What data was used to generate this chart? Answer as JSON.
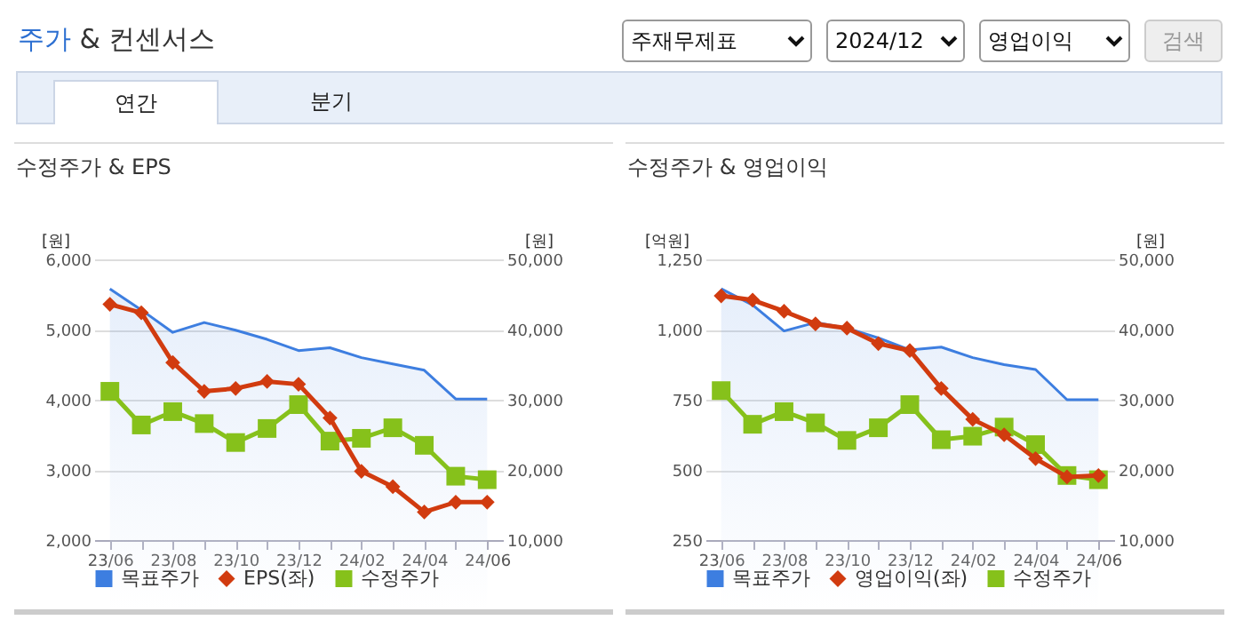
{
  "chart_data": [
    {
      "type": "other",
      "title": "주가 & 컨센서스",
      "annotations": [
        "주재무제표",
        "2024/12",
        "영업이익",
        "검색",
        "연간",
        "분기"
      ]
    },
    {
      "type": "line",
      "title": "수정주가 & EPS",
      "ylabel": "[원]",
      "y2label": "[원]",
      "categories": [
        "23/06",
        null,
        "23/08",
        null,
        "23/10",
        null,
        "23/12",
        null,
        "24/02",
        null,
        "24/04",
        null,
        "24/06"
      ],
      "series": [
        {
          "name": "목표주가",
          "type": "area",
          "axis": "y2",
          "color": "#3d7ee0",
          "values": [
            45800,
            42800,
            39600,
            41000,
            39900,
            38600,
            37000,
            37400,
            36000,
            35100,
            34200,
            30100,
            30100
          ]
        },
        {
          "name": "EPS(좌)",
          "type": "line",
          "axis": "y",
          "marker": "diamond",
          "color": "#d13b0f",
          "values": [
            5360,
            5240,
            4530,
            4120,
            4160,
            4260,
            4220,
            3740,
            2980,
            2760,
            2400,
            2540,
            2540
          ]
        },
        {
          "name": "수정주가",
          "type": "line",
          "axis": "y2",
          "marker": "square",
          "color": "#86c11b",
          "values": [
            31200,
            26400,
            28300,
            26600,
            23900,
            25900,
            29300,
            24100,
            24500,
            26000,
            23500,
            19100,
            18600
          ]
        }
      ],
      "ylim": [
        2000,
        6000
      ],
      "yticks": [
        {
          "value": 2000,
          "label": "2,000"
        },
        {
          "value": 3000,
          "label": "3,000"
        },
        {
          "value": 4000,
          "label": "4,000"
        },
        {
          "value": 5000,
          "label": "5,000"
        },
        {
          "value": 6000,
          "label": "6,000"
        }
      ],
      "y2lim": [
        10000,
        50000
      ],
      "y2ticks": [
        {
          "value": 10000,
          "label": "10,000"
        },
        {
          "value": 20000,
          "label": "20,000"
        },
        {
          "value": 30000,
          "label": "30,000"
        },
        {
          "value": 40000,
          "label": "40,000"
        },
        {
          "value": 50000,
          "label": "50,000"
        }
      ],
      "grid": "y",
      "legend": "bottom"
    },
    {
      "type": "line",
      "title": "수정주가 & 영업이익",
      "ylabel": "[억원]",
      "y2label": "[원]",
      "categories": [
        "23/06",
        null,
        "23/08",
        null,
        "23/10",
        null,
        "23/12",
        null,
        "24/02",
        null,
        "24/04",
        null,
        "24/06"
      ],
      "series": [
        {
          "name": "목표주가",
          "type": "area",
          "axis": "y2",
          "color": "#3d7ee0",
          "values": [
            45800,
            43500,
            39800,
            41000,
            40200,
            38800,
            37100,
            37500,
            36000,
            35000,
            34300,
            30000,
            30000
          ]
        },
        {
          "name": "영업이익(좌)",
          "type": "line",
          "axis": "y",
          "marker": "diamond",
          "color": "#d13b0f",
          "values": [
            1120,
            1105,
            1065,
            1020,
            1005,
            950,
            925,
            790,
            680,
            625,
            540,
            475,
            480
          ]
        },
        {
          "name": "수정주가",
          "type": "line",
          "axis": "y2",
          "marker": "square",
          "color": "#86c11b",
          "values": [
            31300,
            26500,
            28300,
            26700,
            24200,
            26000,
            29300,
            24300,
            24800,
            26100,
            23600,
            19200,
            18600
          ]
        }
      ],
      "ylim": [
        250,
        1250
      ],
      "yticks": [
        250,
        500,
        750,
        {
          "value": 1000,
          "label": "1,000"
        },
        {
          "value": 1250,
          "label": "1,250"
        }
      ],
      "y2lim": [
        10000,
        50000
      ],
      "y2ticks": [
        {
          "value": 10000,
          "label": "10,000"
        },
        {
          "value": 20000,
          "label": "20,000"
        },
        {
          "value": 30000,
          "label": "30,000"
        },
        {
          "value": 40000,
          "label": "40,000"
        },
        {
          "value": 50000,
          "label": "50,000"
        }
      ],
      "grid": "y",
      "legend": "bottom"
    }
  ]
}
